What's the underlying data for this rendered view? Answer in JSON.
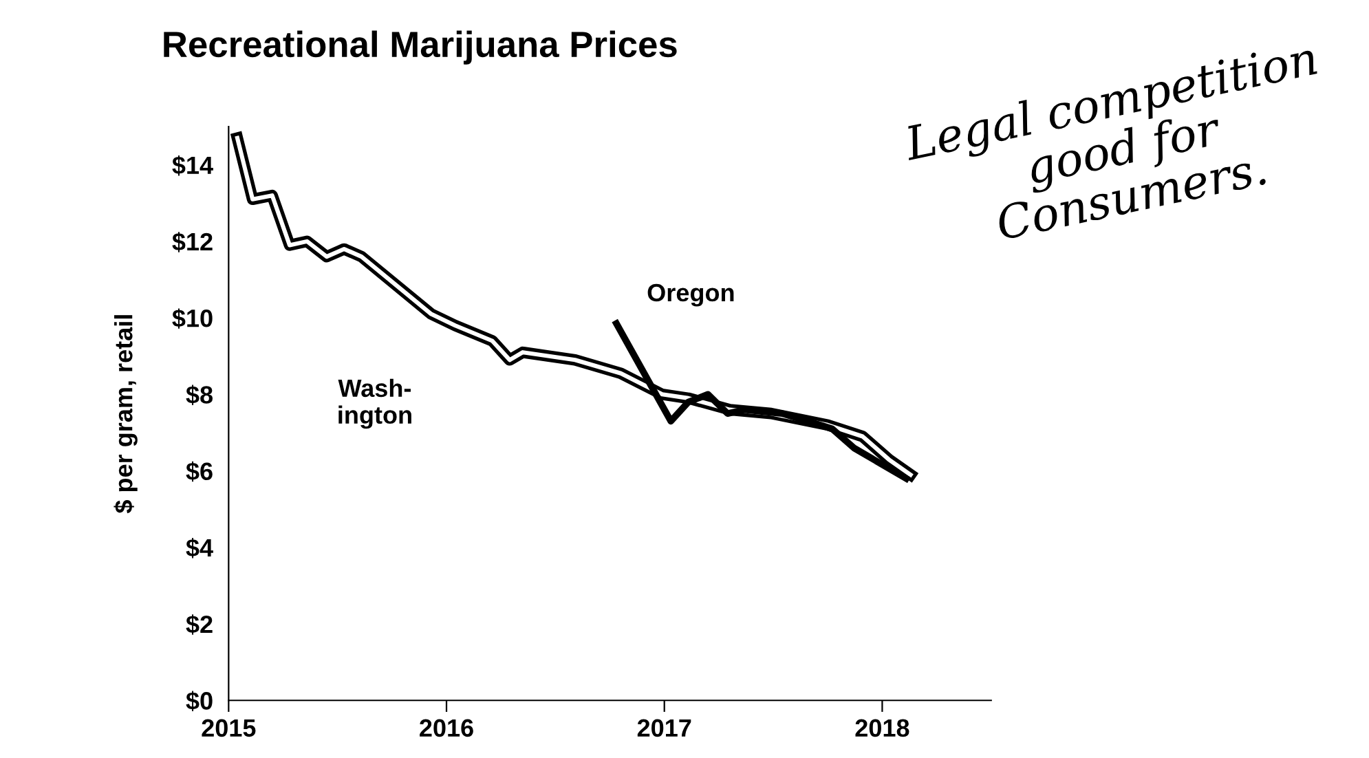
{
  "chart_data": {
    "type": "line",
    "title": "Recreational Marijuana Prices",
    "ylabel": "$ per gram, retail",
    "annotations": [
      "Legal competition\ngood for\nConsumers."
    ],
    "xlim": [
      2015,
      2018.5
    ],
    "xticks": [
      2015,
      2016,
      2017,
      2018
    ],
    "ylim": [
      0,
      15
    ],
    "yticks": [
      {
        "value": 0,
        "label": "$0"
      },
      {
        "value": 2,
        "label": "$2"
      },
      {
        "value": 4,
        "label": "$4"
      },
      {
        "value": 6,
        "label": "$6"
      },
      {
        "value": 8,
        "label": "$8"
      },
      {
        "value": 10,
        "label": "$10"
      },
      {
        "value": 12,
        "label": "$12"
      },
      {
        "value": 14,
        "label": "$14"
      }
    ],
    "grid": false,
    "legend": false,
    "marker": "none",
    "line_style": "solid",
    "series": [
      {
        "name": "Wash-\nington",
        "color": "#000000",
        "x": [
          2015.04,
          2015.11,
          2015.2,
          2015.28,
          2015.36,
          2015.45,
          2015.53,
          2015.61,
          2015.93,
          2016.04,
          2016.21,
          2016.29,
          2016.35,
          2016.59,
          2016.8,
          2016.99,
          2017.11,
          2017.3,
          2017.49,
          2017.75,
          2017.91,
          2018.03,
          2018.13
        ],
        "values": [
          14.7,
          13.1,
          13.2,
          11.9,
          12.0,
          11.6,
          11.8,
          11.6,
          10.1,
          9.8,
          9.4,
          8.9,
          9.1,
          8.9,
          8.55,
          8.0,
          7.9,
          7.6,
          7.5,
          7.2,
          6.9,
          6.3,
          5.9
        ]
      },
      {
        "name": "Oregon",
        "color": "#000000",
        "x": [
          2016.78,
          2017.03,
          2017.11,
          2017.2,
          2017.29,
          2017.37,
          2017.54,
          2017.66,
          2017.77,
          2017.87,
          2018.11
        ],
        "values": [
          9.85,
          7.3,
          7.8,
          8.0,
          7.5,
          7.6,
          7.5,
          7.3,
          7.1,
          6.6,
          5.8
        ]
      }
    ]
  }
}
